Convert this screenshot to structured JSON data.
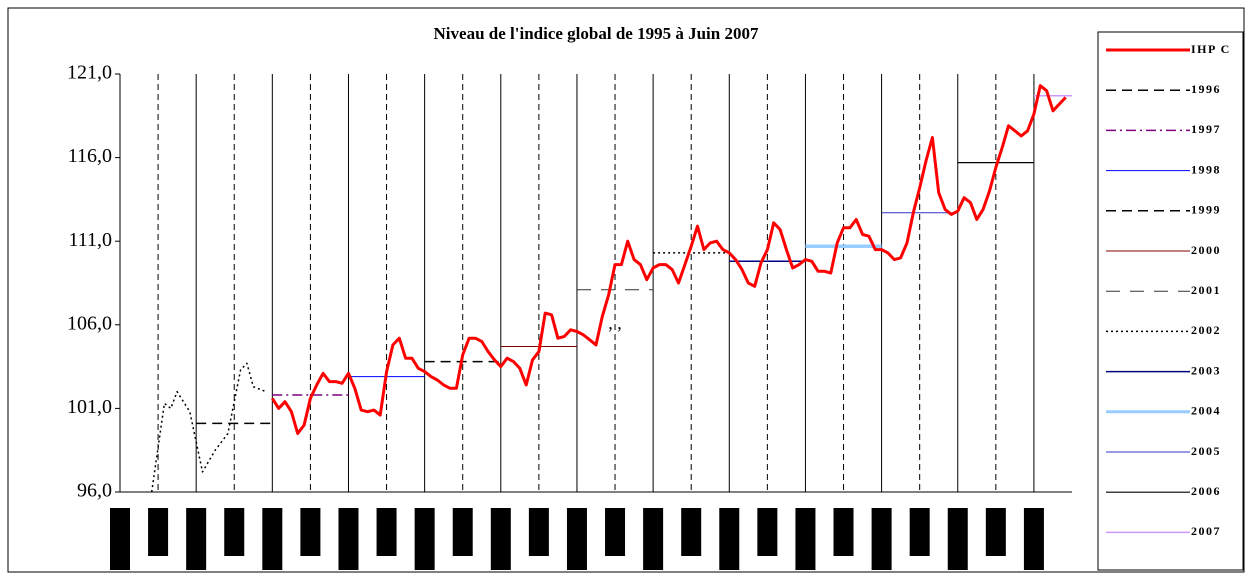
{
  "chart_data": {
    "type": "line",
    "title": "Niveau de l'indice global de 1995 à Juin 2007",
    "xlim": [
      0,
      150
    ],
    "xticks": [
      6,
      12,
      18,
      24,
      30,
      36,
      42,
      48,
      54,
      60,
      66,
      72,
      78,
      84,
      90,
      96,
      102,
      108,
      114,
      120,
      126,
      132,
      138,
      144
    ],
    "xgrid": true,
    "ylim": [
      96,
      121
    ],
    "yticks": [
      {
        "value": 96,
        "label": "96,0"
      },
      {
        "value": 101,
        "label": "101,0"
      },
      {
        "value": 106,
        "label": "106,0"
      },
      {
        "value": 111,
        "label": "111,0"
      },
      {
        "value": 116,
        "label": "116,0"
      },
      {
        "value": 121,
        "label": "121,0"
      }
    ],
    "legend": "right",
    "annotations": [
      {
        "text": ", ,",
        "x": 78,
        "y": 106.0
      }
    ],
    "series": [
      {
        "name": "IHP C",
        "color": "#ff0000",
        "style": "solid",
        "width": 3,
        "x": [
          24,
          25,
          26,
          27,
          28,
          29,
          30,
          31,
          32,
          33,
          34,
          35,
          36,
          37,
          38,
          39,
          40,
          41,
          42,
          43,
          44,
          45,
          46,
          47,
          48,
          49,
          50,
          51,
          52,
          53,
          54,
          55,
          56,
          57,
          58,
          59,
          60,
          61,
          62,
          63,
          64,
          65,
          66,
          67,
          68,
          69,
          70,
          71,
          72,
          73,
          74,
          75,
          76,
          77,
          78,
          79,
          80,
          81,
          82,
          83,
          84,
          85,
          86,
          87,
          88,
          89,
          90,
          91,
          92,
          93,
          94,
          95,
          96,
          97,
          98,
          99,
          100,
          101,
          102,
          103,
          104,
          105,
          106,
          107,
          108,
          109,
          110,
          111,
          112,
          113,
          114,
          115,
          116,
          117,
          118,
          119,
          120,
          121,
          122,
          123,
          124,
          125,
          126,
          127,
          128,
          129,
          130,
          131,
          132,
          133,
          134,
          135,
          136,
          137,
          138,
          139,
          140,
          141,
          142,
          143,
          144,
          145,
          146,
          147,
          148,
          149
        ],
        "values": [
          101.6,
          101.0,
          101.4,
          100.8,
          99.5,
          100.0,
          101.6,
          102.4,
          103.1,
          102.6,
          102.6,
          102.5,
          103.1,
          102.2,
          100.9,
          100.8,
          100.9,
          100.6,
          103.2,
          104.8,
          105.2,
          104.0,
          104.0,
          103.4,
          103.2,
          102.9,
          102.7,
          102.4,
          102.2,
          102.2,
          104.2,
          105.2,
          105.2,
          105.0,
          104.4,
          103.9,
          103.5,
          104.0,
          103.8,
          103.4,
          102.4,
          103.9,
          104.4,
          106.7,
          106.6,
          105.2,
          105.3,
          105.7,
          105.6,
          105.4,
          105.1,
          104.8,
          106.5,
          107.8,
          109.6,
          109.6,
          111.0,
          109.9,
          109.6,
          108.7,
          109.4,
          109.6,
          109.6,
          109.3,
          108.5,
          109.6,
          110.7,
          111.9,
          110.5,
          110.9,
          111.0,
          110.5,
          110.3,
          109.9,
          109.3,
          108.5,
          108.3,
          109.7,
          110.5,
          112.1,
          111.7,
          110.5,
          109.4,
          109.6,
          109.9,
          109.8,
          109.2,
          109.2,
          109.1,
          110.9,
          111.8,
          111.8,
          112.3,
          111.4,
          111.3,
          110.5,
          110.5,
          110.3,
          109.9,
          110.0,
          110.9,
          112.7,
          114.2,
          115.8,
          117.2,
          113.9,
          112.9,
          112.6,
          112.8,
          113.6,
          113.3,
          112.3,
          112.9,
          114.0,
          115.4,
          116.6,
          117.9,
          117.6,
          117.3,
          117.6,
          118.6,
          120.3,
          120.0,
          118.8,
          119.2,
          119.6
        ]
      },
      {
        "name": "1996",
        "color": "#000000",
        "style": "dashed",
        "width": 1.5,
        "x": [
          12,
          24
        ],
        "values": [
          100.1,
          100.1
        ]
      },
      {
        "name": "1997",
        "color": "#800080",
        "style": "dashdot",
        "width": 1.5,
        "x": [
          24,
          36
        ],
        "values": [
          101.8,
          101.8
        ]
      },
      {
        "name": "1998",
        "color": "#0000ff",
        "style": "solid",
        "width": 1,
        "x": [
          36,
          48
        ],
        "values": [
          102.9,
          102.9
        ]
      },
      {
        "name": "1999",
        "color": "#000000",
        "style": "dashed",
        "width": 1.5,
        "x": [
          48,
          60
        ],
        "values": [
          103.8,
          103.8
        ]
      },
      {
        "name": "2000",
        "color": "#800000",
        "style": "solid",
        "width": 1,
        "x": [
          60,
          72
        ],
        "values": [
          104.7,
          104.7
        ]
      },
      {
        "name": "2001",
        "color": "#333333",
        "style": "longdash",
        "width": 1,
        "x": [
          72,
          84
        ],
        "values": [
          108.1,
          108.1
        ]
      },
      {
        "name": "2002",
        "color": "#000000",
        "style": "dotted",
        "width": 1.5,
        "x": [
          84,
          96
        ],
        "values": [
          110.3,
          110.3
        ]
      },
      {
        "name": "2003",
        "color": "#000080",
        "style": "solid",
        "width": 1.5,
        "x": [
          96,
          108
        ],
        "values": [
          109.8,
          109.8
        ]
      },
      {
        "name": "2004",
        "color": "#99ccff",
        "style": "solid",
        "width": 3.5,
        "x": [
          108,
          120
        ],
        "values": [
          110.7,
          110.7
        ]
      },
      {
        "name": "2005",
        "color": "#3333cc",
        "style": "solid",
        "width": 1,
        "x": [
          120,
          132
        ],
        "values": [
          112.7,
          112.7
        ]
      },
      {
        "name": "2006",
        "color": "#000000",
        "style": "solid",
        "width": 1.2,
        "x": [
          132,
          144
        ],
        "values": [
          115.7,
          115.7
        ]
      },
      {
        "name": "2007",
        "color": "#cc99ff",
        "style": "solid",
        "width": 1.5,
        "x": [
          144,
          150
        ],
        "values": [
          119.7,
          119.7
        ]
      },
      {
        "color": "#000000",
        "style": "dotted",
        "width": 1.5,
        "x": [
          5,
          7,
          8,
          9,
          11,
          13,
          15,
          17,
          19,
          20,
          21,
          23
        ],
        "values": [
          96.0,
          101.3,
          101.0,
          102.0,
          100.8,
          97.2,
          98.5,
          99.5,
          103.3,
          103.7,
          102.3,
          102.0
        ]
      }
    ]
  }
}
